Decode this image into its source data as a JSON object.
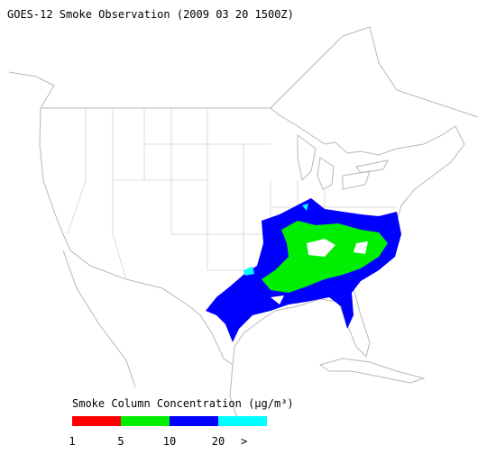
{
  "title": "GOES-12 Smoke Observation (2009 03 20  1500Z)",
  "legend": {
    "title": "Smoke Column Concentration (μg/m³)",
    "colors": [
      "#ff0000",
      "#00ee00",
      "#0000ff",
      "#00ffff"
    ],
    "labels": [
      "1",
      "5",
      "10",
      "20",
      ">"
    ]
  }
}
